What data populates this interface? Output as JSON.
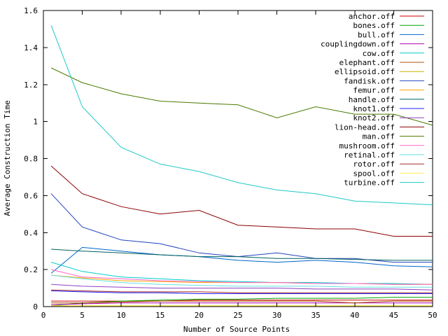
{
  "chart_data": {
    "type": "line",
    "title": "",
    "xlabel": "Number of Source Points",
    "ylabel": "Average Construction Time",
    "xlim": [
      0,
      50
    ],
    "ylim": [
      0,
      1.6
    ],
    "xticks": [
      0,
      5,
      10,
      15,
      20,
      25,
      30,
      35,
      40,
      45,
      50
    ],
    "yticks": [
      0,
      0.2,
      0.4,
      0.6,
      0.8,
      1,
      1.2,
      1.4,
      1.6
    ],
    "grid": false,
    "legend_position": "top-right",
    "x": [
      1,
      5,
      10,
      15,
      20,
      25,
      30,
      35,
      40,
      45,
      50
    ],
    "series": [
      {
        "name": "anchor.off",
        "color": "#cc0000",
        "values": [
          0.03,
          0.03,
          0.03,
          0.03,
          0.035,
          0.035,
          0.035,
          0.035,
          0.035,
          0.035,
          0.035
        ]
      },
      {
        "name": "bones.off",
        "color": "#00a000",
        "values": [
          0.005,
          0.02,
          0.03,
          0.035,
          0.04,
          0.04,
          0.045,
          0.045,
          0.045,
          0.05,
          0.05
        ]
      },
      {
        "name": "bull.off",
        "color": "#0066cc",
        "values": [
          0.18,
          0.32,
          0.3,
          0.28,
          0.27,
          0.25,
          0.24,
          0.25,
          0.24,
          0.22,
          0.215
        ]
      },
      {
        "name": "couplingdown.off",
        "color": "#b000b0",
        "values": [
          0.01,
          0.015,
          0.02,
          0.02,
          0.02,
          0.02,
          0.02,
          0.02,
          0.02,
          0.02,
          0.02
        ]
      },
      {
        "name": "cow.off",
        "color": "#00cccc",
        "values": [
          0.24,
          0.19,
          0.16,
          0.15,
          0.14,
          0.135,
          0.13,
          0.13,
          0.125,
          0.125,
          0.12
        ]
      },
      {
        "name": "elephant.off",
        "color": "#b05000",
        "values": [
          0.02,
          0.02,
          0.025,
          0.03,
          0.03,
          0.03,
          0.03,
          0.03,
          0.02,
          0.03,
          0.03
        ]
      },
      {
        "name": "ellipsoid.off",
        "color": "#c8b400",
        "values": [
          0.005,
          0.005,
          0.005,
          0.005,
          0.005,
          0.005,
          0.005,
          0.005,
          0.005,
          0.005,
          0.005
        ]
      },
      {
        "name": "fandisk.off",
        "color": "#2244bb",
        "values": [
          0.61,
          0.43,
          0.36,
          0.34,
          0.29,
          0.27,
          0.29,
          0.26,
          0.26,
          0.24,
          0.24
        ]
      },
      {
        "name": "femur.off",
        "color": "#ffa500",
        "values": [
          0.17,
          0.155,
          0.14,
          0.135,
          0.13,
          0.13,
          0.13,
          0.125,
          0.125,
          0.12,
          0.12
        ]
      },
      {
        "name": "handle.off",
        "color": "#006060",
        "values": [
          0.31,
          0.3,
          0.29,
          0.28,
          0.27,
          0.27,
          0.26,
          0.26,
          0.255,
          0.25,
          0.25
        ]
      },
      {
        "name": "knot1.off",
        "color": "#2020ff",
        "values": [
          0.085,
          0.08,
          0.075,
          0.075,
          0.07,
          0.07,
          0.07,
          0.07,
          0.07,
          0.07,
          0.07
        ]
      },
      {
        "name": "knot2.off",
        "color": "#9040c0",
        "values": [
          0.12,
          0.11,
          0.105,
          0.1,
          0.1,
          0.1,
          0.1,
          0.095,
          0.095,
          0.095,
          0.09
        ]
      },
      {
        "name": "lion-head.off",
        "color": "#8b0000",
        "values": [
          0.76,
          0.61,
          0.54,
          0.5,
          0.52,
          0.44,
          0.43,
          0.42,
          0.42,
          0.38,
          0.38
        ]
      },
      {
        "name": "man.off",
        "color": "#4b7a00",
        "values": [
          1.29,
          1.21,
          1.15,
          1.11,
          1.1,
          1.09,
          1.02,
          1.08,
          1.04,
          1.04,
          0.98
        ]
      },
      {
        "name": "mushroom.off",
        "color": "#ff66cc",
        "values": [
          0.2,
          0.16,
          0.15,
          0.14,
          0.135,
          0.13,
          0.13,
          0.125,
          0.125,
          0.12,
          0.12
        ]
      },
      {
        "name": "retinal.off",
        "color": "#66e0e0",
        "values": [
          0.17,
          0.15,
          0.13,
          0.12,
          0.115,
          0.11,
          0.11,
          0.11,
          0.105,
          0.105,
          0.105
        ]
      },
      {
        "name": "rotor.off",
        "color": "#a52a2a",
        "values": [
          0.09,
          0.085,
          0.08,
          0.08,
          0.08,
          0.075,
          0.075,
          0.075,
          0.075,
          0.075,
          0.075
        ]
      },
      {
        "name": "spool.off",
        "color": "#ffee55",
        "values": [
          0.005,
          0.005,
          0.005,
          0.005,
          0.005,
          0.005,
          0.005,
          0.005,
          0.005,
          0.005,
          0.005
        ]
      },
      {
        "name": "turbine.off",
        "color": "#20c8c8",
        "values": [
          1.52,
          1.08,
          0.86,
          0.77,
          0.73,
          0.67,
          0.63,
          0.61,
          0.57,
          0.56,
          0.55
        ]
      }
    ]
  }
}
